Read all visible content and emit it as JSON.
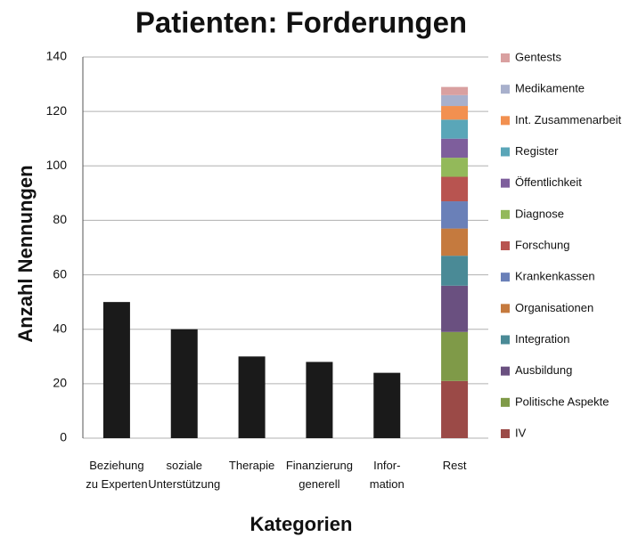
{
  "chart_data": {
    "type": "stacked_bar",
    "title": "Patienten: Forderungen",
    "x_label": "Kategorien",
    "y_label": "Anzahl Nennungen",
    "categories": [
      "Beziehung\nzu Experten",
      "soziale\nUnterstützung",
      "Therapie",
      "Finanzierung\ngenerell",
      "Infor-\nmation",
      "Rest"
    ],
    "series": [
      {
        "color": "#1a1a1a",
        "values": [
          50,
          40,
          30,
          28,
          24,
          null
        ]
      },
      {
        "name": "IV",
        "color": "#9b4a47",
        "values": [
          null,
          null,
          null,
          null,
          null,
          21
        ]
      },
      {
        "name": "Politische Aspekte",
        "color": "#7f9a48",
        "values": [
          null,
          null,
          null,
          null,
          null,
          18
        ]
      },
      {
        "name": "Ausbildung",
        "color": "#6a5080",
        "values": [
          null,
          null,
          null,
          null,
          null,
          17
        ]
      },
      {
        "name": "Integration",
        "color": "#4a8a96",
        "values": [
          null,
          null,
          null,
          null,
          null,
          11
        ]
      },
      {
        "name": "Organisationen",
        "color": "#c57a3e",
        "values": [
          null,
          null,
          null,
          null,
          null,
          10
        ]
      },
      {
        "name": "Krankenkassen",
        "color": "#6a80b8",
        "values": [
          null,
          null,
          null,
          null,
          null,
          10
        ]
      },
      {
        "name": "Forschung",
        "color": "#b85450",
        "values": [
          null,
          null,
          null,
          null,
          null,
          9
        ]
      },
      {
        "name": "Diagnose",
        "color": "#93b95a",
        "values": [
          null,
          null,
          null,
          null,
          null,
          7
        ]
      },
      {
        "name": "Öffentlichkeit",
        "color": "#7e5e9c",
        "values": [
          null,
          null,
          null,
          null,
          null,
          7
        ]
      },
      {
        "name": "Register",
        "color": "#5aa6b8",
        "values": [
          null,
          null,
          null,
          null,
          null,
          7
        ]
      },
      {
        "name": "Int. Zusammenarbeit",
        "color": "#f29050",
        "values": [
          null,
          null,
          null,
          null,
          null,
          5
        ]
      },
      {
        "name": "Medikamente",
        "color": "#a8b0cc",
        "values": [
          null,
          null,
          null,
          null,
          null,
          4
        ]
      },
      {
        "name": "Gentests",
        "color": "#d9a0a0",
        "values": [
          null,
          null,
          null,
          null,
          null,
          3
        ]
      }
    ],
    "ylim": [
      0,
      140
    ],
    "yticks": [
      0,
      20,
      40,
      60,
      80,
      100,
      120,
      140
    ],
    "grid": true,
    "legend": "right"
  }
}
